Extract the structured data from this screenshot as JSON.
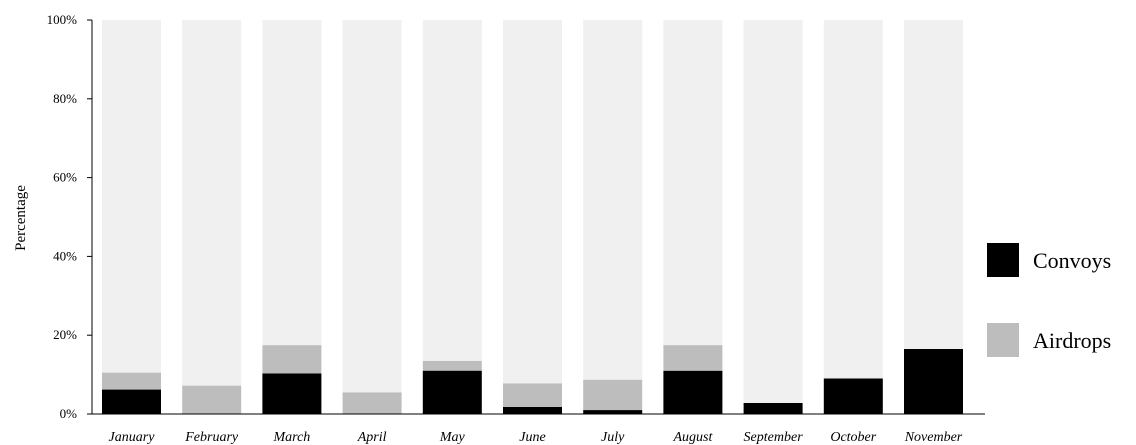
{
  "chart_data": {
    "type": "bar",
    "stacked": true,
    "percent": true,
    "title": "",
    "xlabel": "",
    "ylabel": "Percentage",
    "ylim": [
      0,
      100
    ],
    "yticks": [
      "0%",
      "20%",
      "40%",
      "60%",
      "80%",
      "100%"
    ],
    "grid": false,
    "legend_position": "right",
    "categories": [
      "January",
      "February",
      "March",
      "April",
      "May",
      "June",
      "July",
      "August",
      "September",
      "October",
      "November"
    ],
    "series": [
      {
        "name": "Convoys",
        "color": "#000000",
        "values": [
          6.2,
          0,
          10.3,
          0,
          11.0,
          1.8,
          1.0,
          11.0,
          2.8,
          9.0,
          16.5
        ]
      },
      {
        "name": "Airdrops",
        "color": "#bdbdbd",
        "values": [
          4.3,
          7.2,
          7.2,
          5.5,
          2.5,
          6.0,
          7.7,
          6.5,
          0,
          0,
          0
        ]
      },
      {
        "name": "",
        "color": "#f0f0f0",
        "values": [
          89.5,
          92.8,
          82.5,
          94.5,
          86.5,
          92.2,
          91.3,
          82.5,
          97.2,
          91.0,
          83.5
        ]
      }
    ]
  }
}
